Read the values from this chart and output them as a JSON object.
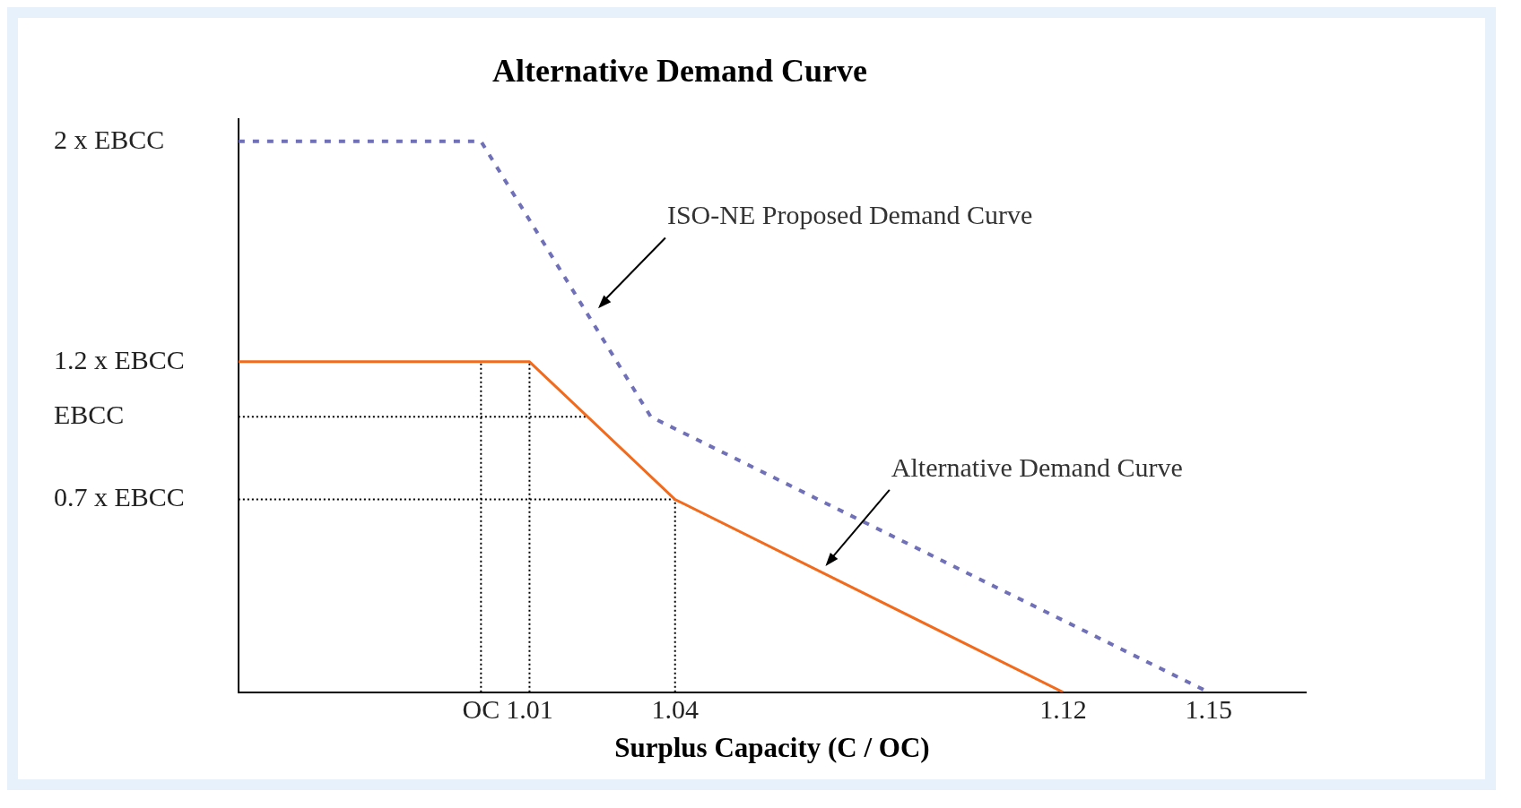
{
  "chart_data": {
    "type": "line",
    "title": "Alternative Demand Curve",
    "xlabel": "Surplus Capacity (C / OC)",
    "xlim": [
      0.95,
      1.17
    ],
    "ylim": [
      0,
      2.08
    ],
    "xticks": [
      {
        "value": 1,
        "label": "OC"
      },
      1.01,
      1.04,
      1.12,
      1.15
    ],
    "yticks": [
      {
        "value": 0.7,
        "label": "0.7 x EBCC"
      },
      {
        "value": 1,
        "label": "EBCC"
      },
      {
        "value": 1.2,
        "label": "1.2 x EBCC"
      },
      {
        "value": 2,
        "label": "2 x EBCC"
      }
    ],
    "grid": false,
    "legend": false,
    "marker": "none",
    "series": [
      {
        "color": "#7070b8",
        "line_style": "dashed",
        "x": [
          0.95,
          1.0,
          1.035,
          1.15
        ],
        "values": [
          2,
          2,
          1,
          0
        ]
      },
      {
        "color": "#f26a1b",
        "line_style": "solid",
        "x": [
          0.95,
          1.01,
          1.04,
          1.12
        ],
        "values": [
          1.2,
          1.2,
          0.7,
          0
        ]
      },
      {
        "color": "#000000",
        "line_style": "dotted",
        "x": [
          0.95,
          1.022
        ],
        "values": [
          1,
          1
        ]
      },
      {
        "color": "#000000",
        "line_style": "dotted",
        "x": [
          0.95,
          1.04
        ],
        "values": [
          0.7,
          0.7
        ]
      },
      {
        "color": "#000000",
        "line_style": "dotted",
        "x": [
          1.0,
          1.0
        ],
        "values": [
          0,
          1.2
        ]
      },
      {
        "color": "#000000",
        "line_style": "dotted",
        "x": [
          1.01,
          1.01
        ],
        "values": [
          0,
          1.2
        ]
      },
      {
        "color": "#000000",
        "line_style": "dotted",
        "x": [
          1.04,
          1.04
        ],
        "values": [
          0,
          0.7
        ]
      }
    ],
    "annotations": [
      "ISO-NE Proposed Demand Curve",
      "Alternative Demand Curve"
    ]
  }
}
